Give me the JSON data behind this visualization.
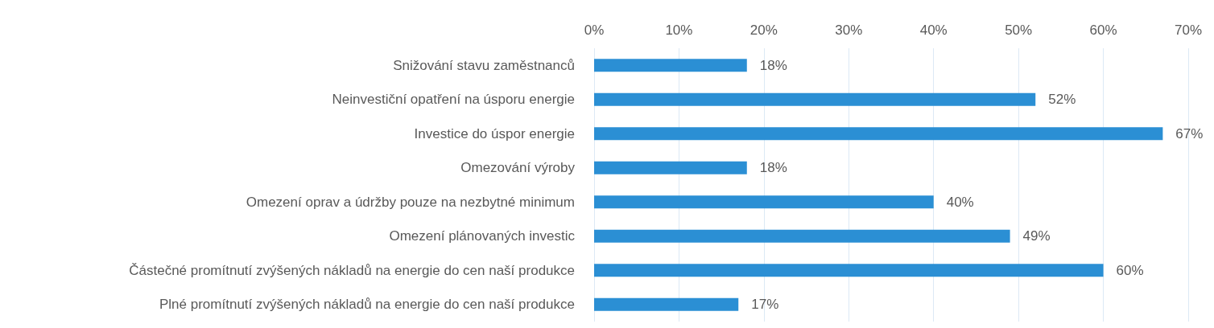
{
  "chart_data": {
    "type": "bar",
    "orientation": "horizontal",
    "categories": [
      "Snižování stavu zaměstnanců",
      "Neinvestiční opatření na úsporu energie",
      "Investice do úspor energie",
      "Omezování výroby",
      "Omezení oprav a údržby pouze na nezbytné minimum",
      "Omezení plánovaných investic",
      "Částečné promítnutí zvýšených nákladů na energie do cen naší produkce",
      "Plné promítnutí zvýšených nákladů na energie do cen naší produkce"
    ],
    "values": [
      18,
      52,
      67,
      18,
      40,
      49,
      60,
      17
    ],
    "value_labels": [
      "18%",
      "52%",
      "67%",
      "18%",
      "40%",
      "49%",
      "60%",
      "17%"
    ],
    "color": "#2b8fd4",
    "xlim": [
      0,
      70
    ],
    "xticks": [
      {
        "value": 0,
        "label": "0%"
      },
      {
        "value": 10,
        "label": "10%"
      },
      {
        "value": 20,
        "label": "20%"
      },
      {
        "value": 30,
        "label": "30%"
      },
      {
        "value": 40,
        "label": "40%"
      },
      {
        "value": 50,
        "label": "50%"
      },
      {
        "value": 60,
        "label": "60%"
      },
      {
        "value": 70,
        "label": "70%"
      }
    ],
    "grid": "x"
  }
}
